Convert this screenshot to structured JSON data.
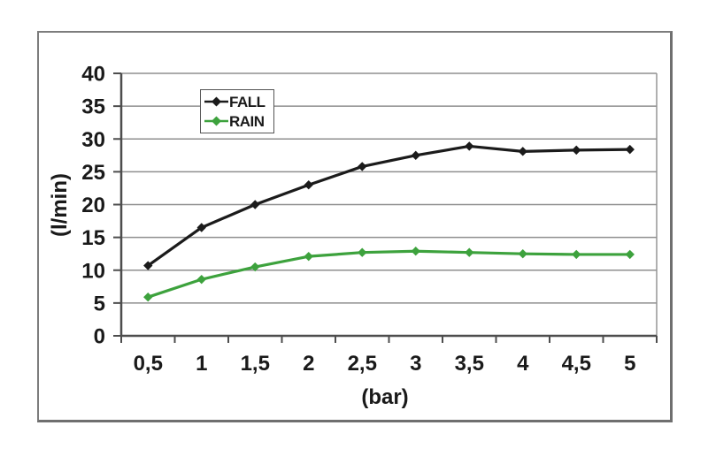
{
  "chart_data": {
    "type": "line",
    "title": "",
    "xlabel": "(bar)",
    "ylabel": "(l/min)",
    "x": [
      0.5,
      1,
      1.5,
      2,
      2.5,
      3,
      3.5,
      4,
      4.5,
      5
    ],
    "x_tick_labels": [
      "0,5",
      "1",
      "1,5",
      "2",
      "2,5",
      "3",
      "3,5",
      "4",
      "4,5",
      "5"
    ],
    "y_ticks": [
      0,
      5,
      10,
      15,
      20,
      25,
      30,
      35,
      40
    ],
    "y_tick_labels": [
      "0",
      "5",
      "10",
      "15",
      "20",
      "25",
      "30",
      "35",
      "40"
    ],
    "ylim": [
      0,
      40
    ],
    "grid": "horizontal",
    "legend_position": "inside-top-left",
    "series": [
      {
        "name": "FALL",
        "color": "#1b1b1b",
        "marker": "diamond",
        "values": [
          10.7,
          16.5,
          20.0,
          23.0,
          25.8,
          27.5,
          28.9,
          28.1,
          28.3,
          28.4
        ]
      },
      {
        "name": "RAIN",
        "color": "#3da23d",
        "marker": "diamond",
        "values": [
          5.9,
          8.6,
          10.5,
          12.1,
          12.7,
          12.9,
          12.7,
          12.5,
          12.4,
          12.4
        ]
      }
    ]
  },
  "styles": {
    "background": "#ffffff",
    "gridline_color": "#8f8f8f",
    "axis_color": "#4d4d4d",
    "text_color": "#1a1a1a",
    "frame_border_color": "#7d7d7d",
    "legend_border_color": "#555555"
  }
}
